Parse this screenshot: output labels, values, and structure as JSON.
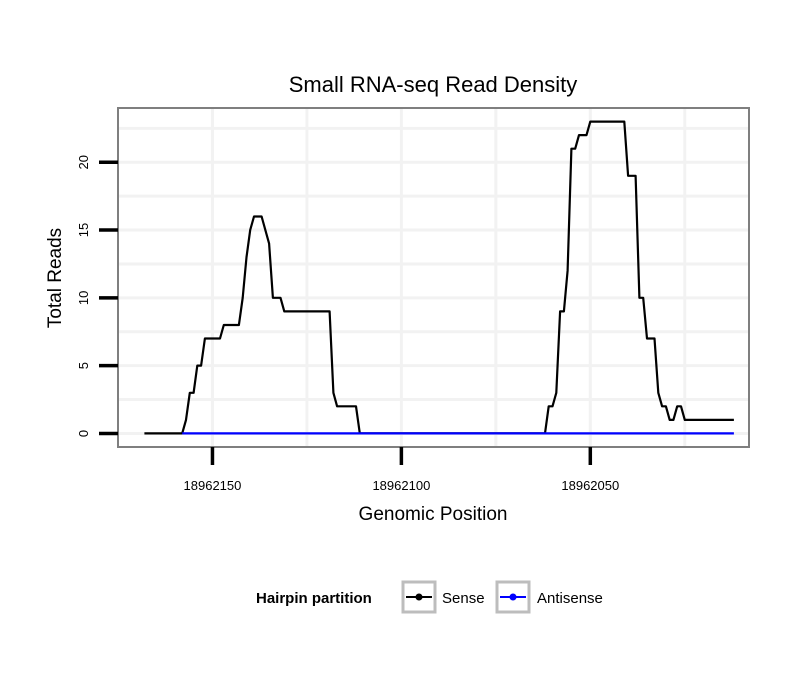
{
  "chart_data": {
    "type": "line",
    "title": "Small RNA-seq Read Density",
    "xlabel": "Genomic Position",
    "ylabel": "Total Reads",
    "x_reversed": true,
    "xlim": [
      18962175,
      18962008
    ],
    "ylim": [
      -1,
      24
    ],
    "x_ticks": [
      18962150,
      18962100,
      18962050
    ],
    "x_tick_labels": [
      "18962150",
      "18962100",
      "18962050"
    ],
    "y_ticks": [
      0,
      5,
      10,
      15,
      20
    ],
    "y_tick_labels": [
      "0",
      "5",
      "10",
      "15",
      "20"
    ],
    "grid": true,
    "legend": {
      "title": "Hairpin partition",
      "position": "bottom",
      "entries": [
        "Sense",
        "Antisense"
      ]
    },
    "series": [
      {
        "name": "Sense",
        "color": "#000000",
        "points": [
          [
            18962168,
            0
          ],
          [
            18962158,
            0
          ],
          [
            18962157,
            1
          ],
          [
            18962156,
            3
          ],
          [
            18962155,
            3
          ],
          [
            18962154,
            5
          ],
          [
            18962153,
            5
          ],
          [
            18962152,
            7
          ],
          [
            18962148,
            7
          ],
          [
            18962147,
            8
          ],
          [
            18962143,
            8
          ],
          [
            18962142,
            10
          ],
          [
            18962141,
            13
          ],
          [
            18962140,
            15
          ],
          [
            18962139,
            16
          ],
          [
            18962137,
            16
          ],
          [
            18962135,
            14
          ],
          [
            18962134,
            10
          ],
          [
            18962132,
            10
          ],
          [
            18962131,
            9
          ],
          [
            18962119,
            9
          ],
          [
            18962118,
            3
          ],
          [
            18962117,
            2
          ],
          [
            18962112,
            2
          ],
          [
            18962111,
            0
          ],
          [
            18962062,
            0
          ],
          [
            18962061,
            2
          ],
          [
            18962060,
            2
          ],
          [
            18962059,
            3
          ],
          [
            18962058,
            9
          ],
          [
            18962057,
            9
          ],
          [
            18962056,
            12
          ],
          [
            18962055,
            21
          ],
          [
            18962054,
            21
          ],
          [
            18962053,
            22
          ],
          [
            18962051,
            22
          ],
          [
            18962050,
            23
          ],
          [
            18962041,
            23
          ],
          [
            18962040,
            19
          ],
          [
            18962038,
            19
          ],
          [
            18962037,
            10
          ],
          [
            18962036,
            10
          ],
          [
            18962035,
            7
          ],
          [
            18962033,
            7
          ],
          [
            18962032,
            3
          ],
          [
            18962031,
            2
          ],
          [
            18962030,
            2
          ],
          [
            18962029,
            1
          ],
          [
            18962028,
            1
          ],
          [
            18962027,
            2
          ],
          [
            18962026,
            2
          ],
          [
            18962025,
            1
          ],
          [
            18962012,
            1
          ]
        ]
      },
      {
        "name": "Antisense",
        "color": "#0000ff",
        "points": [
          [
            18962158,
            0
          ],
          [
            18962012,
            0
          ]
        ]
      }
    ]
  }
}
